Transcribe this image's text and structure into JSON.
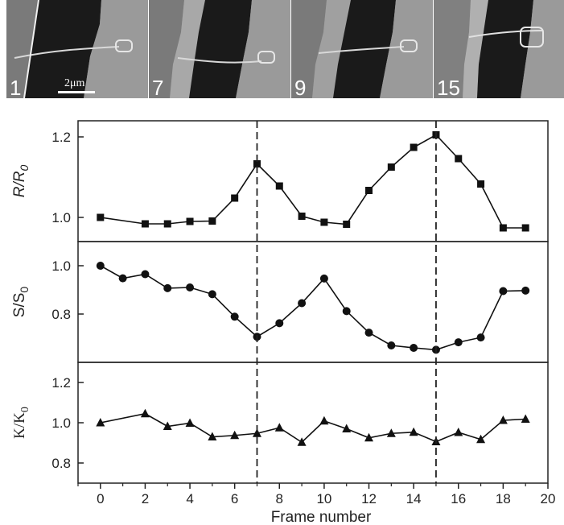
{
  "micrographs": [
    {
      "label": "1"
    },
    {
      "label": "7"
    },
    {
      "label": "9"
    },
    {
      "label": "15"
    }
  ],
  "scale_bar": {
    "label": "2μm"
  },
  "chart_data": {
    "type": "line",
    "xlabel": "Frame number",
    "xlim": [
      -1,
      20
    ],
    "x_ticks": [
      0,
      2,
      4,
      6,
      8,
      10,
      12,
      14,
      16,
      18,
      20
    ],
    "vertical_markers": [
      7,
      15
    ],
    "panels": [
      {
        "ylabel": "R/R0",
        "marker": "square",
        "ylim": [
          0.94,
          1.24
        ],
        "y_ticks": [
          1.0,
          1.2
        ],
        "x": [
          0,
          2,
          3,
          4,
          5,
          6,
          7,
          8,
          9,
          10,
          11,
          12,
          13,
          14,
          15,
          16,
          17,
          18,
          19
        ],
        "values": [
          1.0,
          0.984,
          0.984,
          0.99,
          0.991,
          1.048,
          1.133,
          1.078,
          1.003,
          0.988,
          0.983,
          1.067,
          1.125,
          1.174,
          1.205,
          1.146,
          1.083,
          0.974,
          0.974
        ]
      },
      {
        "ylabel": "S/S0",
        "marker": "circle",
        "ylim": [
          0.6,
          1.1
        ],
        "y_ticks": [
          0.8,
          1.0
        ],
        "x": [
          0,
          1,
          2,
          3,
          4,
          5,
          6,
          7,
          8,
          9,
          10,
          11,
          12,
          13,
          14,
          15,
          16,
          17,
          18,
          19
        ],
        "values": [
          1.0,
          0.948,
          0.965,
          0.907,
          0.91,
          0.882,
          0.789,
          0.706,
          0.762,
          0.845,
          0.947,
          0.812,
          0.723,
          0.67,
          0.66,
          0.652,
          0.683,
          0.703,
          0.895,
          0.897
        ]
      },
      {
        "ylabel": "K/K0",
        "marker": "triangle",
        "ylim": [
          0.7,
          1.3
        ],
        "y_ticks": [
          0.8,
          1.0,
          1.2
        ],
        "x": [
          0,
          2,
          3,
          4,
          5,
          6,
          7,
          8,
          9,
          10,
          11,
          12,
          13,
          14,
          15,
          16,
          17,
          18,
          19
        ],
        "values": [
          1.0,
          1.045,
          0.982,
          0.998,
          0.93,
          0.937,
          0.947,
          0.975,
          0.903,
          1.009,
          0.97,
          0.925,
          0.947,
          0.953,
          0.906,
          0.952,
          0.917,
          1.012,
          1.018
        ]
      }
    ]
  }
}
